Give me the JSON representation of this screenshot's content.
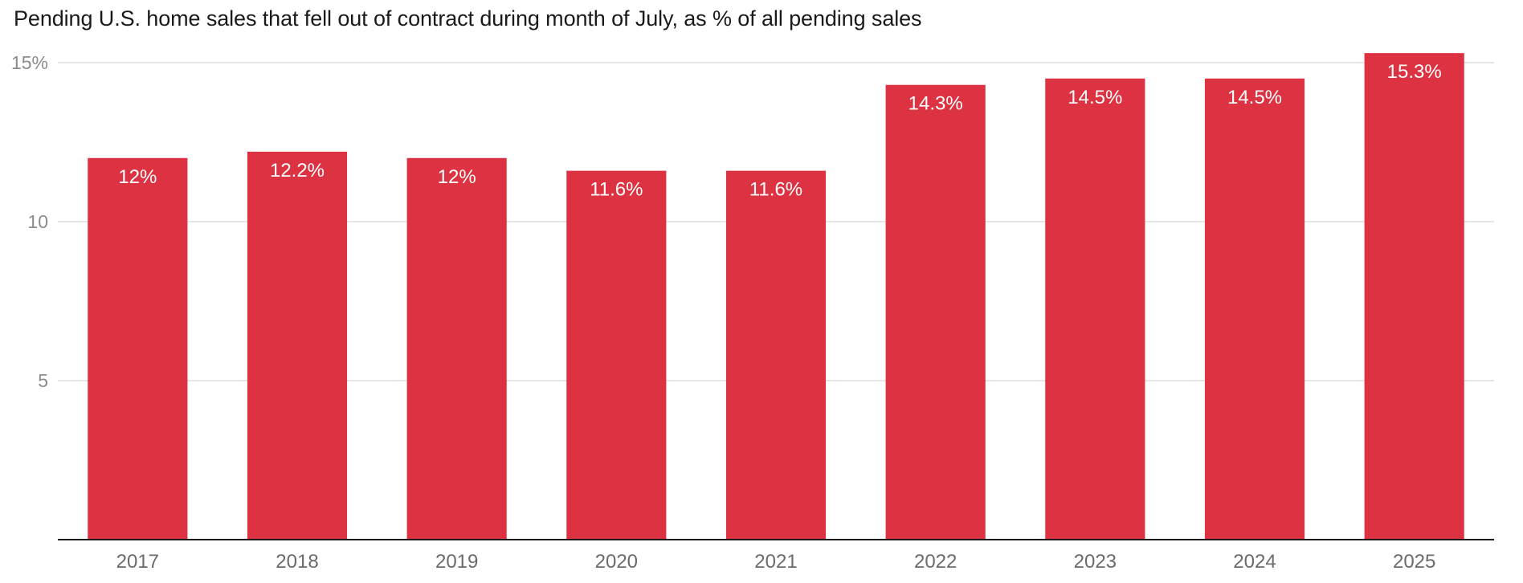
{
  "title": "Pending U.S. home sales that fell out of contract during month of July, as % of all pending sales",
  "colors": {
    "bar": "#dd3241",
    "grid": "#dedede",
    "axis": "#1a1a1a",
    "bar_label": "#ffffff"
  },
  "chart_data": {
    "type": "bar",
    "title": "Pending U.S. home sales that fell out of contract during month of July, as % of all pending sales",
    "xlabel": "",
    "ylabel": "",
    "categories": [
      "2017",
      "2018",
      "2019",
      "2020",
      "2021",
      "2022",
      "2023",
      "2024",
      "2025"
    ],
    "values": [
      12,
      12.2,
      12,
      11.6,
      11.6,
      14.3,
      14.5,
      14.5,
      15.3
    ],
    "data_labels": [
      "12%",
      "12.2%",
      "12%",
      "11.6%",
      "11.6%",
      "14.3%",
      "14.5%",
      "14.5%",
      "15.3%"
    ],
    "ylim": [
      0,
      15
    ],
    "yticks": [
      5,
      10,
      15
    ],
    "ytick_labels": [
      "5",
      "10",
      "15%"
    ],
    "grid": true,
    "legend": "none"
  }
}
